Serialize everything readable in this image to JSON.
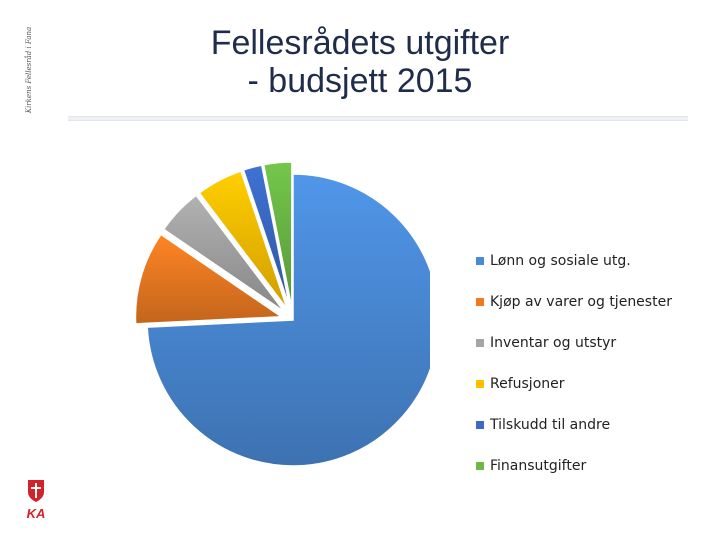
{
  "slide": {
    "side_text": "Kirkens Fellesråd i Fana",
    "title_lines": [
      "Fellesrådets utgifter",
      "- budsjett 2015"
    ],
    "logo_text": "KA"
  },
  "colors": {
    "accent_title": "#1f2d4a",
    "logo_red": "#d2232a"
  },
  "chart_data": {
    "type": "pie",
    "style": "exploded-3d-pie",
    "title": "",
    "legend_position": "right",
    "categories": [
      "Lønn og sosiale utg.",
      "Kjøp av varer og tjenester",
      "Inventar og utstyr",
      "Refusjoner",
      "Tilskudd til andre",
      "Finansutgifter"
    ],
    "values": [
      72,
      10,
      5,
      5,
      2,
      3
    ],
    "unit": "percent (estimated)",
    "colors": [
      "#4a8bd8",
      "#ee7b22",
      "#a5a5a5",
      "#ffc000",
      "#3a6ac4",
      "#6bb845"
    ]
  }
}
